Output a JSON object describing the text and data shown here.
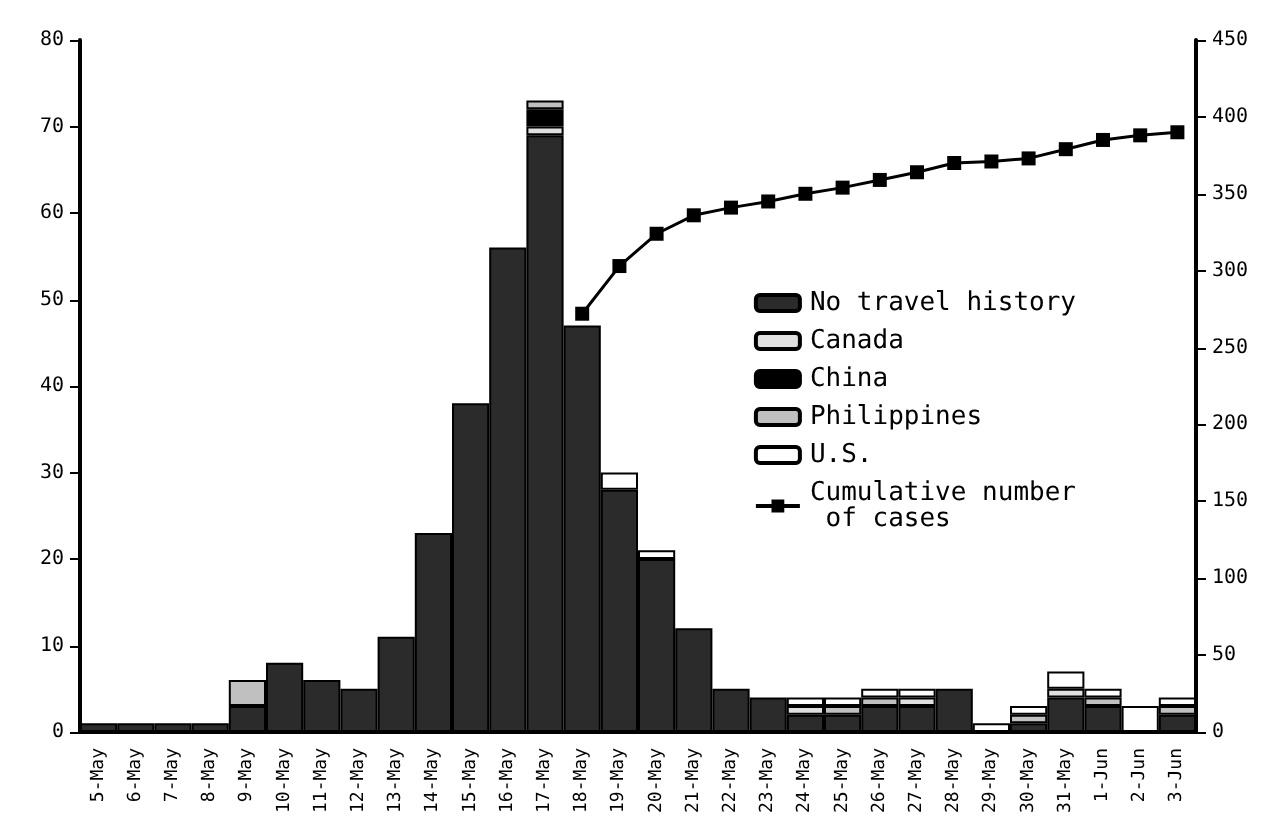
{
  "chart_data": {
    "type": "bar",
    "stacked": true,
    "categories": [
      "5-May",
      "6-May",
      "7-May",
      "8-May",
      "9-May",
      "10-May",
      "11-May",
      "12-May",
      "13-May",
      "14-May",
      "15-May",
      "16-May",
      "17-May",
      "18-May",
      "19-May",
      "20-May",
      "21-May",
      "22-May",
      "23-May",
      "24-May",
      "25-May",
      "26-May",
      "27-May",
      "28-May",
      "29-May",
      "30-May",
      "31-May",
      "1-Jun",
      "2-Jun",
      "3-Jun"
    ],
    "series": [
      {
        "name": "No travel history",
        "color": "#2b2b2b",
        "values": [
          1,
          1,
          1,
          1,
          3,
          8,
          6,
          5,
          11,
          23,
          38,
          56,
          69,
          47,
          28,
          20,
          12,
          5,
          4,
          2,
          2,
          3,
          3,
          5,
          0,
          1,
          4,
          3,
          0,
          2
        ]
      },
      {
        "name": "Canada",
        "color": "#e0e0e0",
        "values": [
          0,
          0,
          0,
          0,
          0,
          0,
          0,
          0,
          0,
          0,
          0,
          0,
          1,
          0,
          0,
          0,
          0,
          0,
          0,
          1,
          0,
          0,
          1,
          0,
          0,
          0,
          1,
          0,
          0,
          0
        ]
      },
      {
        "name": "China",
        "color": "#000000",
        "values": [
          0,
          0,
          0,
          0,
          0,
          0,
          0,
          0,
          0,
          0,
          0,
          0,
          2,
          0,
          0,
          0,
          0,
          0,
          0,
          0,
          0,
          0,
          0,
          0,
          0,
          0,
          0,
          0,
          0,
          0
        ]
      },
      {
        "name": "Philippines",
        "color": "#c0c0c0",
        "values": [
          0,
          0,
          0,
          0,
          3,
          0,
          0,
          0,
          0,
          0,
          0,
          0,
          1,
          0,
          0,
          0,
          0,
          0,
          0,
          0,
          1,
          1,
          0,
          0,
          0,
          1,
          0,
          1,
          0,
          1
        ]
      },
      {
        "name": "U.S.",
        "color": "#ffffff",
        "values": [
          0,
          0,
          0,
          0,
          0,
          0,
          0,
          0,
          0,
          0,
          0,
          0,
          0,
          0,
          2,
          1,
          0,
          0,
          0,
          1,
          1,
          1,
          1,
          0,
          1,
          1,
          2,
          1,
          3,
          1
        ]
      },
      {
        "name": "Cumulative number of cases",
        "type": "line",
        "axis": "y2",
        "color": "#000000",
        "values": [
          null,
          null,
          null,
          null,
          null,
          null,
          null,
          null,
          null,
          null,
          null,
          null,
          null,
          272,
          303,
          324,
          336,
          341,
          345,
          350,
          354,
          359,
          364,
          370,
          371,
          373,
          379,
          385,
          388,
          390
        ]
      }
    ],
    "ylim": [
      0,
      80
    ],
    "yticks": [
      0,
      10,
      20,
      30,
      40,
      50,
      60,
      70,
      80
    ],
    "y2lim": [
      0,
      450
    ],
    "y2ticks": [
      0,
      50,
      100,
      150,
      200,
      250,
      300,
      350,
      400,
      450
    ],
    "grid": false,
    "legend": "right",
    "marker": "square",
    "line_style": "solid"
  }
}
